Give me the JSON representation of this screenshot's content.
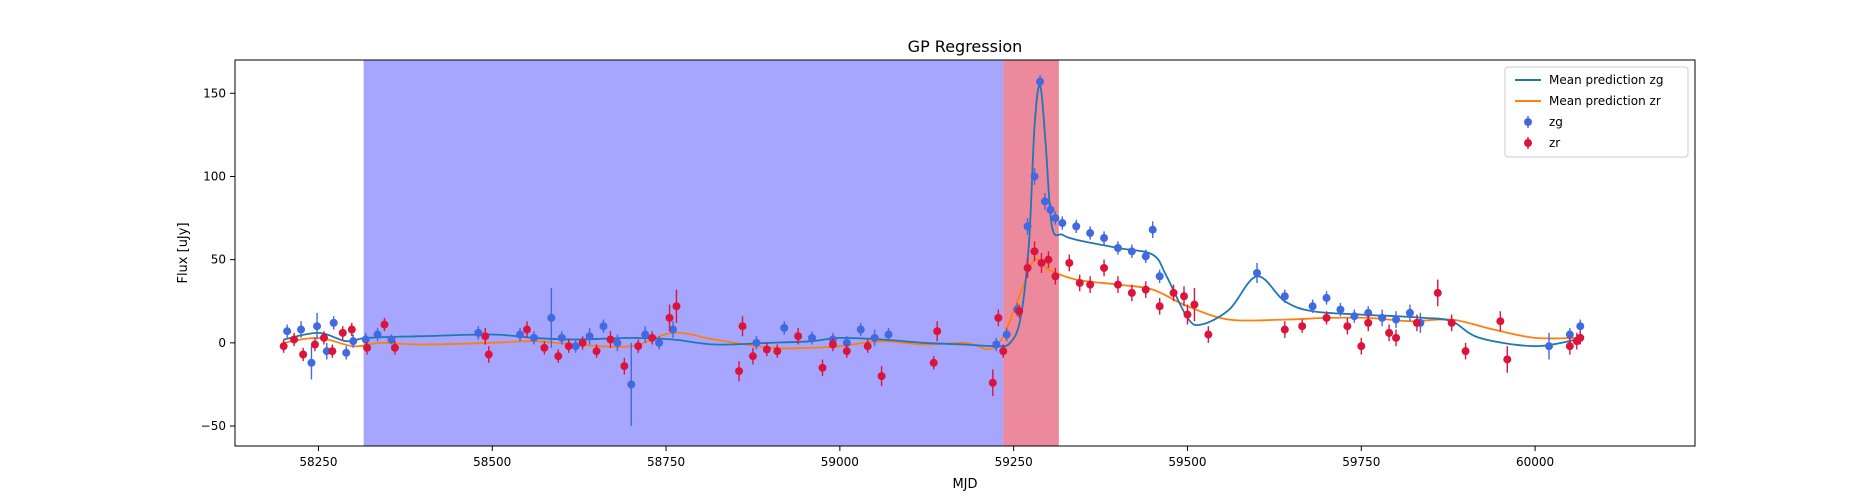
{
  "chart_data": {
    "type": "scatter",
    "title": "GP Regression",
    "xlabel": "MJD",
    "ylabel": "Flux [uJy]",
    "xlim": [
      58130,
      60230
    ],
    "ylim": [
      -62,
      170
    ],
    "xticks": [
      58250,
      58500,
      58750,
      59000,
      59250,
      59500,
      59750,
      60000
    ],
    "yticks": [
      -50,
      0,
      50,
      100,
      150
    ],
    "grid": false,
    "legend_position": "top-right",
    "legend": [
      {
        "label": "Mean prediction zg",
        "kind": "line",
        "color": "#1f77b4"
      },
      {
        "label": "Mean prediction zr",
        "kind": "line",
        "color": "#ff7f0e"
      },
      {
        "label": "zg",
        "kind": "errorbar",
        "color": "#4169e1"
      },
      {
        "label": "zr",
        "kind": "errorbar",
        "color": "#dc143c"
      }
    ],
    "shaded_regions": [
      {
        "x_start": 58315,
        "x_end": 59235,
        "color": "#0000ff",
        "opacity": 0.35
      },
      {
        "x_start": 59235,
        "x_end": 59315,
        "color": "#dc143c",
        "opacity": 0.5
      }
    ],
    "series": [
      {
        "name": "Mean prediction zg",
        "kind": "line",
        "color": "#1f77b4",
        "x": [
          58200,
          58250,
          58290,
          58320,
          58400,
          58500,
          58560,
          58620,
          58700,
          58760,
          58820,
          58900,
          58960,
          59000,
          59060,
          59120,
          59180,
          59225,
          59245,
          59260,
          59272,
          59280,
          59288,
          59296,
          59305,
          59320,
          59340,
          59400,
          59450,
          59470,
          59500,
          59520,
          59560,
          59600,
          59640,
          59680,
          59750,
          59800,
          59840,
          59880,
          59920,
          60000,
          60060
        ],
        "y": [
          2,
          6,
          1,
          3,
          4,
          5,
          3,
          2,
          3,
          2,
          -1,
          0,
          1,
          3,
          2,
          0,
          -1,
          -2,
          0,
          15,
          60,
          130,
          155,
          120,
          70,
          65,
          62,
          57,
          53,
          40,
          15,
          11,
          20,
          40,
          25,
          19,
          17,
          16,
          15,
          13,
          3,
          -2,
          2
        ]
      },
      {
        "name": "Mean prediction zr",
        "kind": "line",
        "color": "#ff7f0e",
        "x": [
          58200,
          58250,
          58300,
          58340,
          58400,
          58500,
          58560,
          58620,
          58700,
          58760,
          58820,
          58900,
          58960,
          59000,
          59060,
          59120,
          59180,
          59225,
          59260,
          59280,
          59300,
          59340,
          59400,
          59450,
          59500,
          59560,
          59640,
          59700,
          59760,
          59820,
          59880,
          59940,
          60000,
          60060
        ],
        "y": [
          0,
          3,
          -2,
          0,
          -1,
          0,
          1,
          -1,
          -2,
          6,
          2,
          -3,
          -3,
          -2,
          1,
          -1,
          0,
          -2,
          30,
          50,
          44,
          38,
          35,
          32,
          22,
          14,
          14,
          15,
          15,
          13,
          14,
          8,
          3,
          3
        ]
      },
      {
        "name": "zg",
        "kind": "errorbar",
        "color": "#4169e1",
        "points": [
          [
            58205,
            7,
            4
          ],
          [
            58225,
            8,
            5
          ],
          [
            58240,
            -12,
            10
          ],
          [
            58248,
            10,
            8
          ],
          [
            58262,
            -5,
            5
          ],
          [
            58272,
            12,
            4
          ],
          [
            58290,
            -6,
            4
          ],
          [
            58300,
            1,
            4
          ],
          [
            58318,
            2,
            4
          ],
          [
            58335,
            5,
            4
          ],
          [
            58355,
            2,
            3
          ],
          [
            58480,
            6,
            4
          ],
          [
            58540,
            5,
            4
          ],
          [
            58560,
            3,
            4
          ],
          [
            58585,
            15,
            18
          ],
          [
            58600,
            3,
            4
          ],
          [
            58620,
            -2,
            4
          ],
          [
            58640,
            4,
            5
          ],
          [
            58660,
            10,
            4
          ],
          [
            58680,
            0,
            5
          ],
          [
            58700,
            -25,
            25
          ],
          [
            58720,
            5,
            5
          ],
          [
            58740,
            0,
            4
          ],
          [
            58760,
            8,
            5
          ],
          [
            58880,
            0,
            4
          ],
          [
            58920,
            9,
            4
          ],
          [
            58960,
            3,
            4
          ],
          [
            58990,
            2,
            4
          ],
          [
            59010,
            0,
            4
          ],
          [
            59030,
            8,
            4
          ],
          [
            59050,
            3,
            5
          ],
          [
            59070,
            5,
            4
          ],
          [
            59225,
            -1,
            4
          ],
          [
            59240,
            5,
            4
          ],
          [
            59255,
            20,
            4
          ],
          [
            59270,
            70,
            5
          ],
          [
            59280,
            100,
            5
          ],
          [
            59288,
            157,
            4
          ],
          [
            59295,
            85,
            5
          ],
          [
            59303,
            80,
            4
          ],
          [
            59310,
            75,
            4
          ],
          [
            59320,
            72,
            4
          ],
          [
            59340,
            70,
            4
          ],
          [
            59360,
            66,
            4
          ],
          [
            59380,
            63,
            4
          ],
          [
            59400,
            57,
            4
          ],
          [
            59420,
            55,
            4
          ],
          [
            59440,
            52,
            4
          ],
          [
            59450,
            68,
            5
          ],
          [
            59460,
            40,
            4
          ],
          [
            59600,
            42,
            6
          ],
          [
            59640,
            28,
            4
          ],
          [
            59680,
            22,
            4
          ],
          [
            59700,
            27,
            4
          ],
          [
            59720,
            20,
            4
          ],
          [
            59740,
            16,
            4
          ],
          [
            59760,
            18,
            4
          ],
          [
            59780,
            15,
            5
          ],
          [
            59800,
            14,
            5
          ],
          [
            59820,
            18,
            5
          ],
          [
            59835,
            12,
            6
          ],
          [
            60020,
            -2,
            8
          ],
          [
            60050,
            5,
            4
          ],
          [
            60065,
            10,
            4
          ]
        ]
      },
      {
        "name": "zr",
        "kind": "errorbar",
        "color": "#dc143c",
        "points": [
          [
            58200,
            -2,
            4
          ],
          [
            58215,
            2,
            4
          ],
          [
            58228,
            -7,
            4
          ],
          [
            58245,
            -1,
            4
          ],
          [
            58258,
            3,
            4
          ],
          [
            58270,
            -5,
            4
          ],
          [
            58285,
            6,
            4
          ],
          [
            58298,
            8,
            4
          ],
          [
            58320,
            -3,
            4
          ],
          [
            58345,
            11,
            4
          ],
          [
            58360,
            -3,
            4
          ],
          [
            58490,
            4,
            5
          ],
          [
            58495,
            -7,
            5
          ],
          [
            58550,
            8,
            5
          ],
          [
            58575,
            -3,
            4
          ],
          [
            58595,
            -8,
            4
          ],
          [
            58610,
            -2,
            4
          ],
          [
            58630,
            0,
            4
          ],
          [
            58650,
            -5,
            4
          ],
          [
            58670,
            2,
            5
          ],
          [
            58690,
            -14,
            5
          ],
          [
            58710,
            -2,
            4
          ],
          [
            58730,
            3,
            4
          ],
          [
            58755,
            15,
            8
          ],
          [
            58765,
            22,
            10
          ],
          [
            58855,
            -17,
            6
          ],
          [
            58860,
            10,
            6
          ],
          [
            58875,
            -8,
            5
          ],
          [
            58895,
            -4,
            4
          ],
          [
            58910,
            -5,
            4
          ],
          [
            58940,
            4,
            5
          ],
          [
            58975,
            -15,
            5
          ],
          [
            58990,
            -1,
            4
          ],
          [
            59010,
            -5,
            4
          ],
          [
            59040,
            -2,
            4
          ],
          [
            59060,
            -20,
            6
          ],
          [
            59135,
            -12,
            4
          ],
          [
            59140,
            7,
            6
          ],
          [
            59220,
            -24,
            8
          ],
          [
            59228,
            15,
            5
          ],
          [
            59235,
            -5,
            4
          ],
          [
            59258,
            19,
            4
          ],
          [
            59270,
            45,
            6
          ],
          [
            59280,
            55,
            6
          ],
          [
            59290,
            48,
            6
          ],
          [
            59300,
            50,
            5
          ],
          [
            59310,
            40,
            5
          ],
          [
            59330,
            48,
            5
          ],
          [
            59345,
            36,
            5
          ],
          [
            59360,
            35,
            5
          ],
          [
            59380,
            45,
            5
          ],
          [
            59400,
            35,
            5
          ],
          [
            59420,
            30,
            5
          ],
          [
            59440,
            32,
            5
          ],
          [
            59460,
            22,
            5
          ],
          [
            59480,
            30,
            5
          ],
          [
            59495,
            28,
            6
          ],
          [
            59500,
            17,
            6
          ],
          [
            59510,
            23,
            10
          ],
          [
            59530,
            5,
            5
          ],
          [
            59640,
            8,
            5
          ],
          [
            59665,
            10,
            4
          ],
          [
            59700,
            15,
            4
          ],
          [
            59730,
            10,
            5
          ],
          [
            59750,
            -2,
            5
          ],
          [
            59760,
            12,
            5
          ],
          [
            59790,
            6,
            5
          ],
          [
            59800,
            3,
            5
          ],
          [
            59830,
            12,
            5
          ],
          [
            59860,
            30,
            8
          ],
          [
            59880,
            12,
            5
          ],
          [
            59900,
            -5,
            5
          ],
          [
            59950,
            13,
            6
          ],
          [
            59960,
            -10,
            8
          ],
          [
            60050,
            -2,
            5
          ],
          [
            60060,
            1,
            5
          ],
          [
            60065,
            3,
            4
          ]
        ]
      }
    ]
  }
}
